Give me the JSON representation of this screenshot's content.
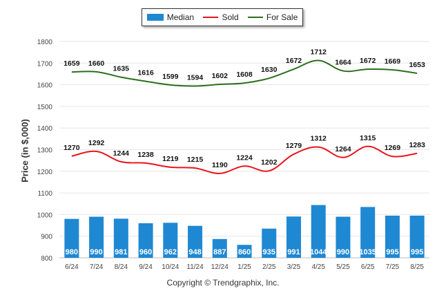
{
  "chart_data": {
    "type": "bar",
    "categories": [
      "6/24",
      "7/24",
      "8/24",
      "9/24",
      "10/24",
      "11/24",
      "12/24",
      "1/25",
      "2/25",
      "3/25",
      "4/25",
      "5/25",
      "6/25",
      "7/25",
      "8/25"
    ],
    "series": [
      {
        "name": "Median",
        "type": "bar",
        "color": "#1f88d2",
        "values": [
          980,
          990,
          981,
          960,
          962,
          948,
          887,
          860,
          935,
          991,
          1044,
          990,
          1035,
          995,
          995
        ]
      },
      {
        "name": "Sold",
        "type": "line",
        "color": "#e8141c",
        "values": [
          1270,
          1292,
          1244,
          1238,
          1219,
          1215,
          1190,
          1224,
          1202,
          1279,
          1312,
          1264,
          1315,
          1269,
          1283
        ]
      },
      {
        "name": "For Sale",
        "type": "line",
        "color": "#2a6e1c",
        "values": [
          1659,
          1660,
          1635,
          1616,
          1599,
          1594,
          1602,
          1608,
          1630,
          1672,
          1712,
          1664,
          1672,
          1669,
          1653
        ]
      }
    ],
    "yticks": [
      800,
      900,
      1000,
      1100,
      1200,
      1300,
      1400,
      1500,
      1600,
      1700,
      1800
    ],
    "ylim": [
      800,
      1800
    ],
    "ylabel": "Price (in $,000)",
    "xlabel": "",
    "grid": true,
    "legend_position": "top-center"
  },
  "footer": {
    "copyright": "Copyright © Trendgraphix, Inc."
  }
}
